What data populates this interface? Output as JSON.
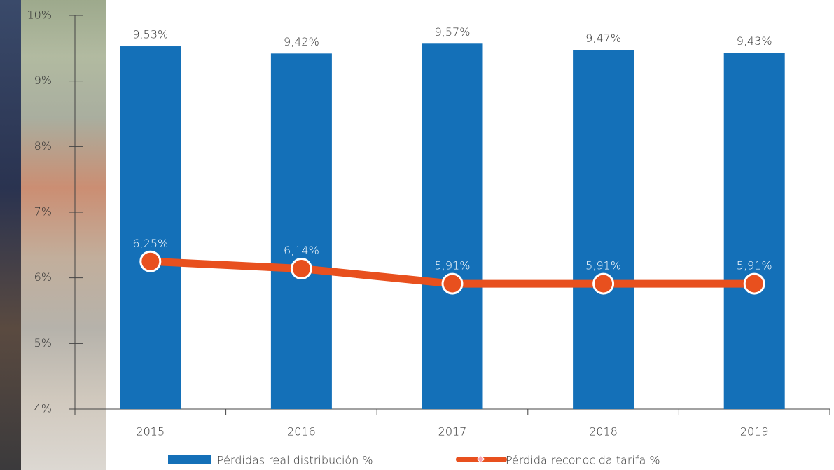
{
  "chart_data": {
    "type": "bar",
    "categories": [
      "2015",
      "2016",
      "2017",
      "2018",
      "2019"
    ],
    "series": [
      {
        "name": "Pérdidas real distribución %",
        "type": "bar",
        "color": "#1470b8",
        "values": [
          9.53,
          9.42,
          9.57,
          9.47,
          9.43
        ],
        "value_labels": [
          "9,53%",
          "9,42%",
          "9,57%",
          "9,47%",
          "9,43%"
        ]
      },
      {
        "name": "Pérdida reconocida tarifa %",
        "type": "line",
        "color": "#e8501e",
        "values": [
          6.25,
          6.14,
          5.91,
          5.91,
          5.91
        ],
        "value_labels": [
          "6,25%",
          "6,14%",
          "5,91%",
          "5,91%",
          "5,91%"
        ]
      }
    ],
    "ylim": [
      4,
      10
    ],
    "yticks": [
      {
        "value": 4,
        "label": "4%"
      },
      {
        "value": 5,
        "label": "5%"
      },
      {
        "value": 6,
        "label": "6%"
      },
      {
        "value": 7,
        "label": "7%"
      },
      {
        "value": 8,
        "label": "8%"
      },
      {
        "value": 9,
        "label": "9%"
      },
      {
        "value": 10,
        "label": "10%"
      }
    ],
    "grid": false,
    "legend": "bottom"
  }
}
